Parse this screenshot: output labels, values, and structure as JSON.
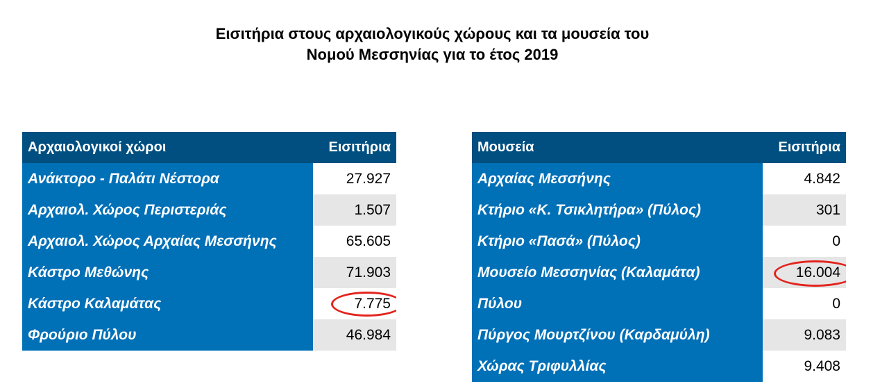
{
  "title": {
    "line1": "Εισιτήρια στους αρχαιολογικούς χώρους και τα μουσεία του",
    "line2": "Νομού Μεσσηνίας για το έτος 2019"
  },
  "sites_table": {
    "header_name": "Αρχαιολογικοί χώροι",
    "header_tickets": "Εισιτήρια",
    "rows": [
      {
        "name": "Ανάκτορο - Παλάτι Νέστορα",
        "tickets": "27.927"
      },
      {
        "name": "Αρχαιολ. Χώρος Περιστεριάς",
        "tickets": "1.507"
      },
      {
        "name": "Αρχαιολ. Χώρος Αρχαίας Μεσσήνης",
        "tickets": "65.605"
      },
      {
        "name": "Κάστρο Μεθώνης",
        "tickets": "71.903"
      },
      {
        "name": "Κάστρο Καλαμάτας",
        "tickets": "7.775"
      },
      {
        "name": "Φρούριο Πύλου",
        "tickets": "46.984"
      }
    ]
  },
  "museums_table": {
    "header_name": "Μουσεία",
    "header_tickets": "Εισιτήρια",
    "rows": [
      {
        "name": "Αρχαίας Μεσσήνης",
        "tickets": "4.842"
      },
      {
        "name": "Κτήριο «Κ. Τσικλητήρα» (Πύλος)",
        "tickets": "301"
      },
      {
        "name": "Κτήριο «Πασά» (Πύλος)",
        "tickets": "0"
      },
      {
        "name": "Μουσείο Μεσσηνίας (Καλαμάτα)",
        "tickets": "16.004"
      },
      {
        "name": "Πύλου",
        "tickets": "0"
      },
      {
        "name": "Πύργος Μουρτζίνου (Καρδαμύλη)",
        "tickets": "9.083"
      },
      {
        "name": "Χώρας Τριφυλλίας",
        "tickets": "9.408"
      }
    ]
  },
  "colors": {
    "header_bg": "#004f80",
    "name_bg": "#0070b7",
    "alt_row_bg": "#e6e6e6",
    "highlight_circle": "#e3231d"
  }
}
